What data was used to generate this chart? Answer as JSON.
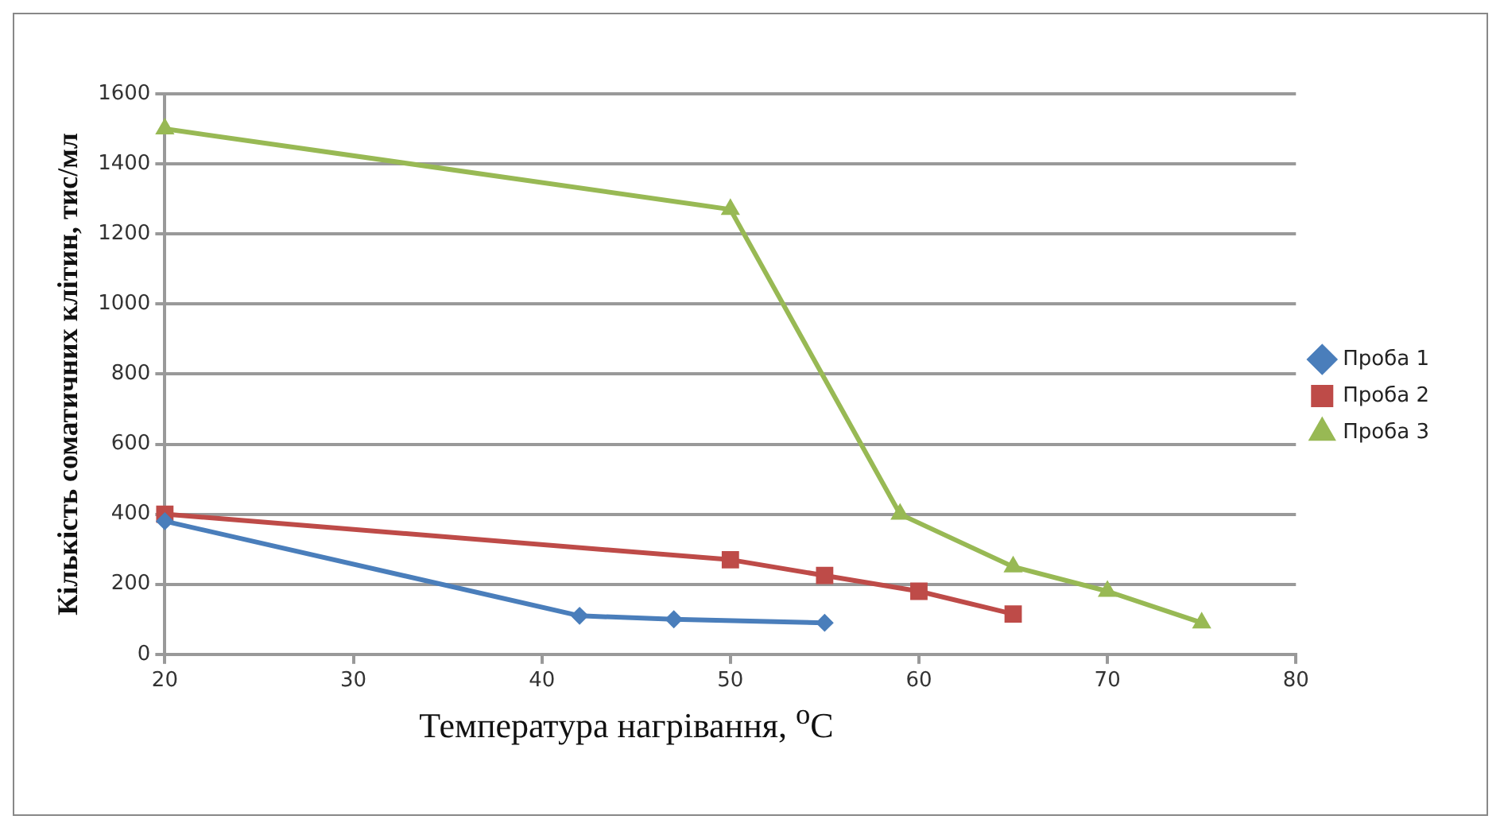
{
  "chart_data": {
    "type": "line",
    "xlabel": "Температура нагрівання, $^{o}$C",
    "ylabel": "Кількість соматичних клітин, тис/мл",
    "xlim": [
      20,
      80
    ],
    "xticks": [
      20,
      30,
      40,
      50,
      60,
      70,
      80
    ],
    "ylim": [
      0,
      1600
    ],
    "yticks": [
      0,
      200,
      400,
      600,
      800,
      1000,
      1200,
      1400,
      1600
    ],
    "grid": "y",
    "legend": "right",
    "series": [
      {
        "name": "Проба 1",
        "color": "#4a7ebb",
        "marker": "diamond",
        "x": [
          20,
          42,
          47,
          55
        ],
        "values": [
          380,
          110,
          100,
          90
        ]
      },
      {
        "name": "Проба 2",
        "color": "#be4b48",
        "marker": "square",
        "x": [
          20,
          50,
          55,
          60,
          65
        ],
        "values": [
          400,
          270,
          225,
          180,
          115
        ]
      },
      {
        "name": "Проба 3",
        "color": "#98b954",
        "marker": "triangle",
        "x": [
          20,
          50,
          59,
          65,
          70,
          75
        ],
        "values": [
          1500,
          1270,
          400,
          250,
          180,
          90
        ]
      }
    ]
  }
}
